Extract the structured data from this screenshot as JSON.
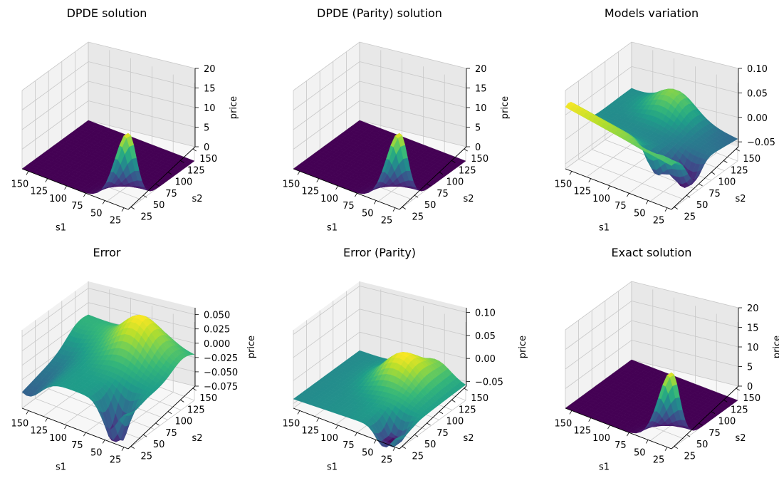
{
  "chart_data": [
    {
      "type": "surface3d",
      "title": "DPDE solution",
      "xlabel": "s1",
      "ylabel": "s2",
      "zlabel": "price",
      "xticks": [
        "150",
        "125",
        "100",
        "75",
        "50",
        "25"
      ],
      "yticks": [
        "25",
        "50",
        "75",
        "100",
        "125",
        "150"
      ],
      "zticks": [
        "0",
        "5",
        "10",
        "15",
        "20"
      ],
      "zlim": [
        0,
        20
      ],
      "surface": "peak",
      "peak_value": 19
    },
    {
      "type": "surface3d",
      "title": "DPDE (Parity) solution",
      "xlabel": "s1",
      "ylabel": "s2",
      "zlabel": "price",
      "xticks": [
        "150",
        "125",
        "100",
        "75",
        "50",
        "25"
      ],
      "yticks": [
        "25",
        "50",
        "75",
        "100",
        "125",
        "150"
      ],
      "zticks": [
        "0",
        "5",
        "10",
        "15",
        "20"
      ],
      "zlim": [
        0,
        20
      ],
      "surface": "peak",
      "peak_value": 19
    },
    {
      "type": "surface3d",
      "title": "Models variation",
      "xlabel": "s1",
      "ylabel": "s2",
      "zlabel": "price",
      "xticks": [
        "150",
        "125",
        "100",
        "75",
        "50",
        "25"
      ],
      "yticks": [
        "25",
        "50",
        "75",
        "100",
        "125",
        "150"
      ],
      "zticks": [
        "−0.05",
        "0.00",
        "0.05",
        "0.10"
      ],
      "zlim": [
        -0.06,
        0.1
      ],
      "surface": "variation",
      "value_range": [
        -0.06,
        0.07
      ]
    },
    {
      "type": "surface3d",
      "title": "Error",
      "xlabel": "s1",
      "ylabel": "s2",
      "zlabel": "price",
      "xticks": [
        "150",
        "125",
        "100",
        "75",
        "50",
        "25"
      ],
      "yticks": [
        "25",
        "50",
        "75",
        "100",
        "125",
        "150"
      ],
      "zticks": [
        "−0.075",
        "−0.050",
        "−0.025",
        "0.000",
        "0.025",
        "0.050"
      ],
      "zlim": [
        -0.075,
        0.062
      ],
      "surface": "error",
      "value_range": [
        -0.09,
        0.04
      ]
    },
    {
      "type": "surface3d",
      "title": "Error (Parity)",
      "xlabel": "s1",
      "ylabel": "s2",
      "zlabel": "price",
      "xticks": [
        "150",
        "125",
        "100",
        "75",
        "50",
        "25"
      ],
      "yticks": [
        "25",
        "50",
        "75",
        "100",
        "125",
        "150"
      ],
      "zticks": [
        "−0.05",
        "0.00",
        "0.05",
        "0.10"
      ],
      "zlim": [
        -0.06,
        0.11
      ],
      "surface": "error_parity",
      "value_range": [
        -0.08,
        0.05
      ]
    },
    {
      "type": "surface3d",
      "title": "Exact solution",
      "xlabel": "s1",
      "ylabel": "s2",
      "zlabel": "price",
      "xticks": [
        "150",
        "125",
        "100",
        "75",
        "50",
        "25"
      ],
      "yticks": [
        "25",
        "50",
        "75",
        "100",
        "125",
        "150"
      ],
      "zticks": [
        "0",
        "5",
        "10",
        "15",
        "20"
      ],
      "zlim": [
        0,
        20
      ],
      "surface": "peak",
      "peak_value": 19
    }
  ],
  "colormap": "viridis",
  "colors": {
    "pane_left": "#f2f2f2",
    "pane_back": "#e8e8e8",
    "pane_floor": "#f7f7f7",
    "grid": "#c8c8c8",
    "axis": "#000000"
  }
}
